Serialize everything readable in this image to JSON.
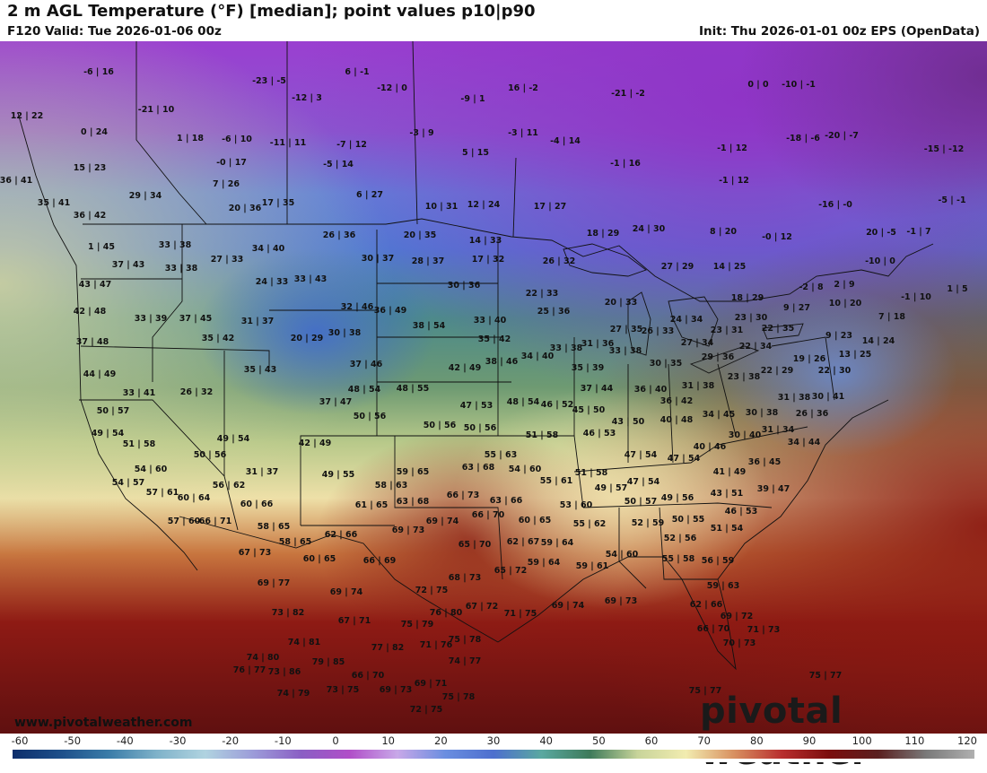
{
  "header": {
    "title": "2 m AGL Temperature (°F) [median]; point values p10|p90",
    "valid": "F120 Valid: Tue 2026-01-06 00z",
    "init": "Init: Thu 2026-01-01 00z EPS (OpenData)"
  },
  "footer": {
    "website": "www.pivotalweather.com",
    "brand": "pivotal weather"
  },
  "colorbar": {
    "labels": [
      "-60",
      "-50",
      "-40",
      "-30",
      "-20",
      "-10",
      "0",
      "10",
      "20",
      "30",
      "40",
      "50",
      "60",
      "70",
      "80",
      "90",
      "100",
      "110",
      "120"
    ],
    "colors": [
      "#0d2e6b",
      "#1d4f8a",
      "#3a7ca8",
      "#7fb2c9",
      "#b0d3e0",
      "#9c9cd9",
      "#8a5fc4",
      "#b04ec8",
      "#c8a8e8",
      "#6a8ee0",
      "#4d6fce",
      "#5aa8a0",
      "#3d7a5a",
      "#c8d49a",
      "#f2ecb0",
      "#d89060",
      "#b82e2e",
      "#7a0d0d",
      "#5a2020",
      "#7a7a7a",
      "#b0b0b0"
    ]
  },
  "point_values": [
    [
      "-6|16",
      110,
      83
    ],
    [
      "-23|-5",
      300,
      93
    ],
    [
      "6|-1",
      398,
      83
    ],
    [
      "-12|0",
      437,
      101
    ],
    [
      "-9|1",
      527,
      113
    ],
    [
      "16|-2",
      583,
      101
    ],
    [
      "-21|-2",
      700,
      107
    ],
    [
      "0|0",
      845,
      97
    ],
    [
      "-10|-1",
      890,
      97
    ],
    [
      "12|22",
      30,
      132
    ],
    [
      "-21|10",
      174,
      125
    ],
    [
      "-12|3",
      342,
      112
    ],
    [
      "-3|9",
      470,
      151
    ],
    [
      "-3|11",
      583,
      151
    ],
    [
      "-4|14",
      630,
      160
    ],
    [
      "-18|-6",
      895,
      157
    ],
    [
      "-20|-7",
      938,
      154
    ],
    [
      "-15|-12",
      1052,
      169
    ],
    [
      "0|24",
      105,
      150
    ],
    [
      "1|18",
      212,
      157
    ],
    [
      "-6|10",
      264,
      158
    ],
    [
      "-11|11",
      321,
      162
    ],
    [
      "-7|12",
      392,
      164
    ],
    [
      "5|15",
      530,
      173
    ],
    [
      "-1|16",
      697,
      185
    ],
    [
      "-1|12",
      816,
      168
    ],
    [
      "-1|12",
      818,
      204
    ],
    [
      "15|23",
      100,
      190
    ],
    [
      "-0|17",
      258,
      184
    ],
    [
      "-5|14",
      377,
      186
    ],
    [
      "36|41",
      18,
      204
    ],
    [
      "7|26",
      252,
      208
    ],
    [
      "6|27",
      412,
      220
    ],
    [
      "-16|-0",
      931,
      231
    ],
    [
      "-5|-1",
      1061,
      226
    ],
    [
      "29|34",
      162,
      221
    ],
    [
      "35|41",
      60,
      229
    ],
    [
      "17|35",
      310,
      229
    ],
    [
      "20|36",
      273,
      235
    ],
    [
      "10|31",
      492,
      233
    ],
    [
      "12|24",
      539,
      231
    ],
    [
      "17|27",
      613,
      233
    ],
    [
      "36|42",
      100,
      243
    ],
    [
      "18|29",
      672,
      263
    ],
    [
      "24|30",
      723,
      258
    ],
    [
      "8|20",
      806,
      261
    ],
    [
      "-0|12",
      866,
      267
    ],
    [
      "20|-5",
      982,
      262
    ],
    [
      "-1|7",
      1024,
      261
    ],
    [
      "26|36",
      378,
      265
    ],
    [
      "20|35",
      468,
      265
    ],
    [
      "14|33",
      541,
      271
    ],
    [
      "33|38",
      195,
      276
    ],
    [
      "34|40",
      299,
      280
    ],
    [
      "1|45",
      113,
      278
    ],
    [
      "-10|0",
      981,
      294
    ],
    [
      "37|43",
      143,
      298
    ],
    [
      "27|33",
      253,
      292
    ],
    [
      "30|37",
      421,
      291
    ],
    [
      "28|37",
      477,
      294
    ],
    [
      "17|32",
      544,
      292
    ],
    [
      "26|32",
      623,
      294
    ],
    [
      "27|29",
      755,
      300
    ],
    [
      "14|25",
      813,
      300
    ],
    [
      "33|38",
      202,
      302
    ],
    [
      "24|33",
      303,
      317
    ],
    [
      "33|43",
      346,
      314
    ],
    [
      "30|36",
      517,
      321
    ],
    [
      "22|33",
      604,
      330
    ],
    [
      "-2|8",
      904,
      323
    ],
    [
      "2|9",
      941,
      320
    ],
    [
      "1|5",
      1067,
      325
    ],
    [
      "43|47",
      106,
      320
    ],
    [
      "20|33",
      692,
      340
    ],
    [
      "18|29",
      833,
      335
    ],
    [
      "-1|10",
      1021,
      334
    ],
    [
      "10|20",
      942,
      341
    ],
    [
      "32|46",
      398,
      345
    ],
    [
      "36|49",
      435,
      349
    ],
    [
      "9|27",
      888,
      346
    ],
    [
      "42|48",
      100,
      350
    ],
    [
      "33|39",
      168,
      358
    ],
    [
      "37|45",
      218,
      358
    ],
    [
      "31|37",
      287,
      361
    ],
    [
      "25|36",
      617,
      350
    ],
    [
      "33|40",
      546,
      360
    ],
    [
      "24|34",
      765,
      359
    ],
    [
      "23|30",
      837,
      357
    ],
    [
      "7|18",
      994,
      356
    ],
    [
      "20|29",
      342,
      380
    ],
    [
      "30|38",
      384,
      374
    ],
    [
      "38|54",
      478,
      366
    ],
    [
      "27|35",
      698,
      370
    ],
    [
      "26|33",
      733,
      372
    ],
    [
      "23|31",
      810,
      371
    ],
    [
      "22|35",
      867,
      369
    ],
    [
      "9|23",
      935,
      377
    ],
    [
      "37|48",
      103,
      384
    ],
    [
      "35|42",
      243,
      380
    ],
    [
      "35|42",
      551,
      381
    ],
    [
      "33|38",
      631,
      391
    ],
    [
      "31|36",
      666,
      386
    ],
    [
      "33|38",
      697,
      394
    ],
    [
      "27|34",
      777,
      385
    ],
    [
      "22|34",
      842,
      389
    ],
    [
      "14|24",
      979,
      383
    ],
    [
      "35|43",
      290,
      415
    ],
    [
      "37|46",
      408,
      409
    ],
    [
      "42|49",
      518,
      413
    ],
    [
      "38|46",
      559,
      406
    ],
    [
      "34|40",
      599,
      400
    ],
    [
      "35|39",
      655,
      413
    ],
    [
      "30|35",
      742,
      408
    ],
    [
      "29|36",
      800,
      401
    ],
    [
      "19|26",
      902,
      403
    ],
    [
      "13|25",
      953,
      398
    ],
    [
      "44|49",
      111,
      420
    ],
    [
      "22|29",
      866,
      416
    ],
    [
      "22|30",
      930,
      416
    ],
    [
      "26|32",
      219,
      440
    ],
    [
      "33|41",
      155,
      441
    ],
    [
      "48|54",
      406,
      437
    ],
    [
      "48|55",
      460,
      436
    ],
    [
      "37|44",
      665,
      436
    ],
    [
      "36|40",
      725,
      437
    ],
    [
      "31|38",
      778,
      433
    ],
    [
      "23|38",
      829,
      423
    ],
    [
      "50|57",
      126,
      461
    ],
    [
      "37|47",
      374,
      451
    ],
    [
      "47|53",
      531,
      455
    ],
    [
      "48|54",
      583,
      451
    ],
    [
      "46|52",
      621,
      454
    ],
    [
      "45|50",
      656,
      460
    ],
    [
      "36|42",
      754,
      450
    ],
    [
      "31|38",
      885,
      446
    ],
    [
      "30|41",
      923,
      445
    ],
    [
      "50|56",
      412,
      467
    ],
    [
      "50|56",
      490,
      477
    ],
    [
      "50|56",
      535,
      480
    ],
    [
      "43|50",
      700,
      473
    ],
    [
      "40|48",
      754,
      471
    ],
    [
      "34|45",
      801,
      465
    ],
    [
      "30|38",
      849,
      463
    ],
    [
      "26|36",
      905,
      464
    ],
    [
      "49|54",
      120,
      486
    ],
    [
      "49|54",
      260,
      492
    ],
    [
      "51|58",
      604,
      488
    ],
    [
      "46|53",
      668,
      486
    ],
    [
      "30|40",
      830,
      488
    ],
    [
      "31|34",
      867,
      482
    ],
    [
      "42|49",
      351,
      497
    ],
    [
      "34|44",
      896,
      496
    ],
    [
      "51|58",
      155,
      498
    ],
    [
      "50|56",
      234,
      510
    ],
    [
      "55|63",
      558,
      510
    ],
    [
      "47|54",
      714,
      510
    ],
    [
      "40|46",
      791,
      501
    ],
    [
      "47|54",
      762,
      514
    ],
    [
      "36|45",
      852,
      518
    ],
    [
      "54|60",
      168,
      526
    ],
    [
      "59|65",
      460,
      529
    ],
    [
      "63|68",
      533,
      524
    ],
    [
      "54|60",
      585,
      526
    ],
    [
      "51|58",
      659,
      530
    ],
    [
      "41|49",
      813,
      529
    ],
    [
      "31|37",
      292,
      529
    ],
    [
      "49|55",
      377,
      532
    ],
    [
      "54|57",
      143,
      541
    ],
    [
      "56|62",
      255,
      544
    ],
    [
      "58|63",
      436,
      544
    ],
    [
      "55|61",
      620,
      539
    ],
    [
      "47|54",
      717,
      540
    ],
    [
      "49|57",
      681,
      547
    ],
    [
      "43|51",
      810,
      553
    ],
    [
      "39|47",
      862,
      548
    ],
    [
      "57|61",
      181,
      552
    ],
    [
      "60|64",
      216,
      558
    ],
    [
      "63|68",
      460,
      562
    ],
    [
      "66|73",
      516,
      555
    ],
    [
      "63|66",
      564,
      561
    ],
    [
      "53|60",
      642,
      566
    ],
    [
      "50|57",
      714,
      562
    ],
    [
      "49|56",
      755,
      558
    ],
    [
      "60|66",
      286,
      565
    ],
    [
      "61|65",
      414,
      566
    ],
    [
      "66|70",
      544,
      577
    ],
    [
      "60|65",
      596,
      583
    ],
    [
      "46|53",
      826,
      573
    ],
    [
      "52|59",
      722,
      586
    ],
    [
      "50|55",
      767,
      582
    ],
    [
      "51|54",
      810,
      592
    ],
    [
      "57|60",
      205,
      584
    ],
    [
      "66|71",
      240,
      584
    ],
    [
      "58|65",
      305,
      590
    ],
    [
      "69|74",
      493,
      584
    ],
    [
      "55|62",
      657,
      587
    ],
    [
      "62|66",
      380,
      599
    ],
    [
      "69|73",
      455,
      594
    ],
    [
      "58|65",
      329,
      607
    ],
    [
      "65|70",
      529,
      610
    ],
    [
      "62|67",
      583,
      607
    ],
    [
      "59|64",
      621,
      608
    ],
    [
      "52|56",
      758,
      603
    ],
    [
      "67|73",
      284,
      619
    ],
    [
      "60|65",
      356,
      626
    ],
    [
      "66|69",
      423,
      628
    ],
    [
      "54|60",
      693,
      621
    ],
    [
      "55|58",
      756,
      626
    ],
    [
      "56|59",
      800,
      628
    ],
    [
      "59|64",
      606,
      630
    ],
    [
      "59|61",
      660,
      634
    ],
    [
      "65|72",
      569,
      639
    ],
    [
      "68|73",
      518,
      647
    ],
    [
      "69|77",
      305,
      653
    ],
    [
      "72|75",
      481,
      661
    ],
    [
      "69|74",
      386,
      663
    ],
    [
      "59|63",
      806,
      656
    ],
    [
      "67|72",
      537,
      679
    ],
    [
      "71|75",
      580,
      687
    ],
    [
      "69|74",
      633,
      678
    ],
    [
      "69|73",
      692,
      673
    ],
    [
      "62|66",
      787,
      677
    ],
    [
      "73|82",
      321,
      686
    ],
    [
      "76|80",
      497,
      686
    ],
    [
      "75|79",
      465,
      699
    ],
    [
      "67|71",
      395,
      695
    ],
    [
      "69|72",
      821,
      690
    ],
    [
      "66|70",
      795,
      704
    ],
    [
      "71|73",
      851,
      705
    ],
    [
      "74|81",
      339,
      719
    ],
    [
      "77|82",
      432,
      725
    ],
    [
      "71|76",
      486,
      722
    ],
    [
      "75|78",
      518,
      716
    ],
    [
      "70|73",
      824,
      720
    ],
    [
      "74|80",
      293,
      736
    ],
    [
      "79|85",
      366,
      741
    ],
    [
      "74|77",
      518,
      740
    ],
    [
      "76|77",
      278,
      750
    ],
    [
      "73|86",
      317,
      752
    ],
    [
      "66|70",
      410,
      756
    ],
    [
      "69|71",
      480,
      765
    ],
    [
      "75|77",
      920,
      756
    ],
    [
      "74|79",
      327,
      776
    ],
    [
      "73|75",
      382,
      772
    ],
    [
      "69|73",
      441,
      772
    ],
    [
      "75|78",
      511,
      780
    ],
    [
      "75|77",
      786,
      773
    ],
    [
      "72|75",
      475,
      794
    ]
  ]
}
